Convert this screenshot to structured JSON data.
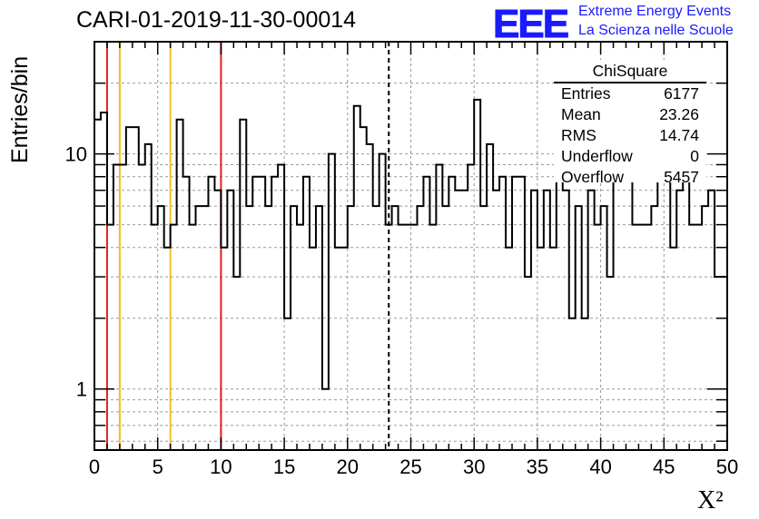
{
  "header": {
    "run_title": "CARI-01-2019-11-30-00014",
    "logo_text": "EEE",
    "logo_line1": "Extreme Energy Events",
    "logo_line2": "La Scienza nelle Scuole"
  },
  "stats_box": {
    "title": "ChiSquare",
    "rows": [
      {
        "key": "Entries",
        "value": "6177"
      },
      {
        "key": "Mean",
        "value": "23.26"
      },
      {
        "key": "RMS",
        "value": "14.74"
      },
      {
        "key": "Underflow",
        "value": "0"
      },
      {
        "key": "Overflow",
        "value": "5457"
      }
    ]
  },
  "chart_data": {
    "type": "histogram",
    "title": "CARI-01-2019-11-30-00014",
    "xlabel": "X²",
    "ylabel": "Entries/bin",
    "xlim": [
      0,
      50
    ],
    "ylim": [
      0.55,
      30
    ],
    "yscale": "log",
    "grid": true,
    "bin_width": 0.5,
    "x_ticks": [
      "0",
      "5",
      "10",
      "15",
      "20",
      "25",
      "30",
      "35",
      "40",
      "45",
      "50"
    ],
    "y_ticks": [
      "1",
      "10"
    ],
    "values": [
      14,
      15,
      5,
      9,
      9,
      13,
      13,
      9,
      11,
      5,
      6,
      4,
      5,
      14,
      8,
      5,
      6,
      6,
      8,
      7,
      4,
      7,
      3,
      14,
      6,
      8,
      8,
      6,
      8,
      9,
      2,
      6,
      5,
      8,
      4,
      6,
      1,
      10,
      4,
      4,
      6,
      16,
      13,
      11,
      6,
      10,
      5,
      6,
      5,
      5,
      5,
      6,
      8,
      5,
      9,
      6,
      8,
      7,
      7,
      9,
      17,
      6,
      11,
      7,
      8,
      4,
      8,
      8,
      3,
      7,
      4,
      7,
      4,
      9,
      7,
      2,
      6,
      2,
      7,
      5,
      6,
      3,
      8,
      8,
      9,
      5,
      5,
      5,
      6,
      8,
      8,
      4,
      7,
      8,
      5,
      5,
      6,
      7,
      3
    ],
    "vertical_lines": [
      {
        "x": 1,
        "color": "#e02020",
        "style": "solid"
      },
      {
        "x": 2,
        "color": "#f0c020",
        "style": "solid"
      },
      {
        "x": 6,
        "color": "#f0c020",
        "style": "solid"
      },
      {
        "x": 10,
        "color": "#e02020",
        "style": "solid"
      },
      {
        "x": 23.26,
        "color": "#000000",
        "style": "dashed"
      }
    ],
    "line_color": "#000000"
  }
}
